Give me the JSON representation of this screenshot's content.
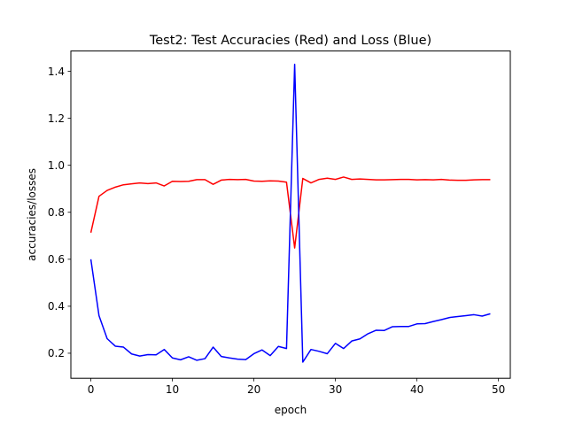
{
  "chart_data": {
    "type": "line",
    "title": "Test2: Test Accuracies (Red) and Loss (Blue)",
    "xlabel": "epoch",
    "ylabel": "accuracies/losses",
    "xlim": [
      -2.45,
      51.45
    ],
    "ylim": [
      0.0935,
      1.4865
    ],
    "xticks": [
      0,
      10,
      20,
      30,
      40,
      50
    ],
    "yticks": [
      0.2,
      0.4,
      0.6,
      0.8,
      1.0,
      1.2,
      1.4
    ],
    "xtick_labels": [
      "0",
      "10",
      "20",
      "30",
      "40",
      "50"
    ],
    "ytick_labels": [
      "0.2",
      "0.4",
      "0.6",
      "0.8",
      "1.0",
      "1.2",
      "1.4"
    ],
    "grid": false,
    "x": [
      0,
      1,
      2,
      3,
      4,
      5,
      6,
      7,
      8,
      9,
      10,
      11,
      12,
      13,
      14,
      15,
      16,
      17,
      18,
      19,
      20,
      21,
      22,
      23,
      24,
      25,
      26,
      27,
      28,
      29,
      30,
      31,
      32,
      33,
      34,
      35,
      36,
      37,
      38,
      39,
      40,
      41,
      42,
      43,
      44,
      45,
      46,
      47,
      48,
      49
    ],
    "series": [
      {
        "color": "#ff0000",
        "values": [
          0.713,
          0.868,
          0.893,
          0.907,
          0.917,
          0.921,
          0.925,
          0.922,
          0.925,
          0.912,
          0.932,
          0.931,
          0.932,
          0.939,
          0.939,
          0.919,
          0.937,
          0.94,
          0.939,
          0.94,
          0.933,
          0.932,
          0.934,
          0.933,
          0.928,
          0.648,
          0.944,
          0.925,
          0.94,
          0.945,
          0.94,
          0.95,
          0.94,
          0.942,
          0.94,
          0.938,
          0.938,
          0.939,
          0.94,
          0.94,
          0.938,
          0.939,
          0.938,
          0.94,
          0.937,
          0.936,
          0.936,
          0.938,
          0.939,
          0.939
        ]
      },
      {
        "color": "#0000ff",
        "values": [
          0.6,
          0.36,
          0.262,
          0.23,
          0.226,
          0.197,
          0.188,
          0.194,
          0.193,
          0.216,
          0.18,
          0.172,
          0.185,
          0.17,
          0.177,
          0.226,
          0.186,
          0.18,
          0.175,
          0.173,
          0.198,
          0.214,
          0.19,
          0.229,
          0.22,
          1.43,
          0.162,
          0.216,
          0.208,
          0.198,
          0.242,
          0.22,
          0.252,
          0.261,
          0.283,
          0.298,
          0.297,
          0.313,
          0.314,
          0.314,
          0.325,
          0.326,
          0.335,
          0.343,
          0.352,
          0.356,
          0.36,
          0.364,
          0.358,
          0.368
        ]
      }
    ]
  }
}
